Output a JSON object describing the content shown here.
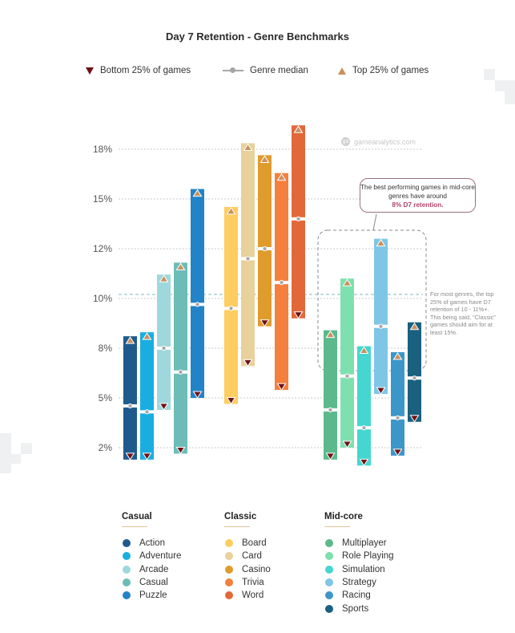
{
  "title": "Day 7 Retention - Genre Benchmarks",
  "legend": {
    "bottom": "Bottom 25% of games",
    "median": "Genre median",
    "top": "Top 25% of games"
  },
  "watermark": "gameanalytics.com",
  "callout": {
    "text": "The best performing games in mid-core genres have around",
    "highlight": "8% D7 retention."
  },
  "note": "For most genres, the top 25% of games have D7 retention of 10 - 11%+. This being said, \"Classic\" games should aim for at least 15%.",
  "colors": {
    "top_marker": "#c8915e",
    "bottom_marker": "#6e1216",
    "median_marker": "#a6a6a6",
    "reference_line": "#7fb8b8",
    "callout_highlight": "#b4446a"
  },
  "chart_data": {
    "type": "floating-bar",
    "title": "Day 7 Retention - Genre Benchmarks",
    "xlabel": "",
    "ylabel": "",
    "yticks": [
      2.5,
      5,
      7.5,
      10,
      12.5,
      15,
      17.5
    ],
    "ytick_labels": [
      "2%",
      "5%",
      "8%",
      "10%",
      "12%",
      "15%",
      "18%"
    ],
    "ylim": [
      1,
      19.5
    ],
    "grid": true,
    "reference_line": 10.2,
    "groups": [
      {
        "name": "Casual",
        "genres": [
          {
            "name": "Action",
            "color": "#1f5a8c",
            "bottom": 1.9,
            "median": 4.6,
            "top": 8.1
          },
          {
            "name": "Adventure",
            "color": "#1aaee0",
            "bottom": 1.9,
            "median": 4.3,
            "top": 8.3
          },
          {
            "name": "Arcade",
            "color": "#9fd8dc",
            "bottom": 4.4,
            "median": 7.5,
            "top": 11.2
          },
          {
            "name": "Casual",
            "color": "#6dbcb8",
            "bottom": 2.2,
            "median": 6.3,
            "top": 11.8
          },
          {
            "name": "Puzzle",
            "color": "#2383c8",
            "bottom": 5.0,
            "median": 9.7,
            "top": 15.5
          }
        ]
      },
      {
        "name": "Classic",
        "genres": [
          {
            "name": "Board",
            "color": "#fdcd5f",
            "bottom": 4.7,
            "median": 9.5,
            "top": 14.6
          },
          {
            "name": "Card",
            "color": "#e8d19a",
            "bottom": 6.6,
            "median": 12.0,
            "top": 17.8
          },
          {
            "name": "Casino",
            "color": "#e09b2d",
            "bottom": 8.6,
            "median": 12.5,
            "top": 17.2
          },
          {
            "name": "Trivia",
            "color": "#f57f3c",
            "bottom": 5.4,
            "median": 10.8,
            "top": 16.3
          },
          {
            "name": "Word",
            "color": "#e2683a",
            "bottom": 9.0,
            "median": 14.0,
            "top": 18.7
          }
        ]
      },
      {
        "name": "Mid-core",
        "genres": [
          {
            "name": "Multiplayer",
            "color": "#5bb98b",
            "bottom": 1.9,
            "median": 4.4,
            "top": 8.4
          },
          {
            "name": "Role Playing",
            "color": "#7ee0ae",
            "bottom": 2.5,
            "median": 6.1,
            "top": 11.0
          },
          {
            "name": "Simulation",
            "color": "#45d6cf",
            "bottom": 1.6,
            "median": 3.5,
            "top": 7.6
          },
          {
            "name": "Strategy",
            "color": "#7fc6e6",
            "bottom": 5.2,
            "median": 8.6,
            "top": 13.0
          },
          {
            "name": "Racing",
            "color": "#3d96c8",
            "bottom": 2.1,
            "median": 4.0,
            "top": 7.3
          },
          {
            "name": "Sports",
            "color": "#1a607f",
            "bottom": 3.8,
            "median": 6.0,
            "top": 8.8
          }
        ]
      }
    ]
  }
}
